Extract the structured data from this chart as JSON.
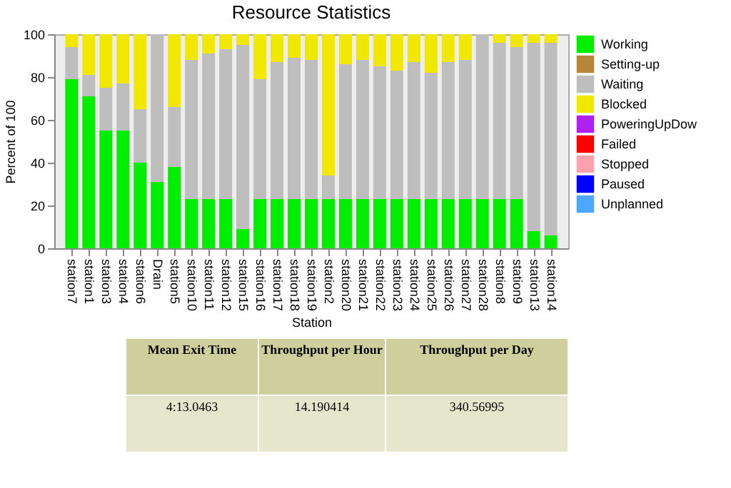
{
  "chart_data": {
    "type": "bar",
    "stacked": true,
    "title": "Resource Statistics",
    "xlabel": "Station",
    "ylabel": "Percent of 100",
    "categories": [
      "station7",
      "station1",
      "station3",
      "station4",
      "station6",
      "Drain",
      "station5",
      "station10",
      "station11",
      "station12",
      "station15",
      "station16",
      "station17",
      "station18",
      "station19",
      "station2",
      "station20",
      "station21",
      "station22",
      "station23",
      "station24",
      "station25",
      "station26",
      "station27",
      "station28",
      "station8",
      "station9",
      "station13",
      "station14"
    ],
    "series": [
      {
        "name": "Working",
        "color": "#00ee00",
        "values": [
          79,
          71,
          55,
          55,
          40,
          31,
          38,
          23,
          23,
          23,
          9,
          23,
          23,
          23,
          23,
          23,
          23,
          23,
          23,
          23,
          23,
          23,
          23,
          23,
          23,
          23,
          23,
          8,
          6
        ]
      },
      {
        "name": "Setting-up",
        "color": "#b8863b",
        "values": [
          0,
          0,
          0,
          0,
          0,
          0,
          0,
          0,
          0,
          0,
          0,
          0,
          0,
          0,
          0,
          0,
          0,
          0,
          0,
          0,
          0,
          0,
          0,
          0,
          0,
          0,
          0,
          0,
          0
        ]
      },
      {
        "name": "Waiting",
        "color": "#bebebe",
        "values": [
          15,
          10,
          20,
          22,
          25,
          69,
          28,
          65,
          68,
          70,
          86,
          56,
          64,
          66,
          65,
          11,
          63,
          65,
          62,
          60,
          64,
          59,
          64,
          65,
          77,
          73,
          71,
          88,
          90
        ]
      },
      {
        "name": "Blocked",
        "color": "#f0e800",
        "values": [
          6,
          19,
          25,
          23,
          35,
          0,
          34,
          12,
          9,
          7,
          5,
          21,
          13,
          11,
          12,
          66,
          14,
          12,
          15,
          17,
          13,
          18,
          13,
          12,
          0,
          4,
          6,
          4,
          4
        ]
      },
      {
        "name": "PoweringUpDow",
        "color": "#b020f0",
        "values": [
          0,
          0,
          0,
          0,
          0,
          0,
          0,
          0,
          0,
          0,
          0,
          0,
          0,
          0,
          0,
          0,
          0,
          0,
          0,
          0,
          0,
          0,
          0,
          0,
          0,
          0,
          0,
          0,
          0
        ]
      },
      {
        "name": "Failed",
        "color": "#ff0000",
        "values": [
          0,
          0,
          0,
          0,
          0,
          0,
          0,
          0,
          0,
          0,
          0,
          0,
          0,
          0,
          0,
          0,
          0,
          0,
          0,
          0,
          0,
          0,
          0,
          0,
          0,
          0,
          0,
          0,
          0
        ]
      },
      {
        "name": "Stopped",
        "color": "#ffa0b0",
        "values": [
          0,
          0,
          0,
          0,
          0,
          0,
          0,
          0,
          0,
          0,
          0,
          0,
          0,
          0,
          0,
          0,
          0,
          0,
          0,
          0,
          0,
          0,
          0,
          0,
          0,
          0,
          0,
          0,
          0
        ]
      },
      {
        "name": "Paused",
        "color": "#0000ff",
        "values": [
          0,
          0,
          0,
          0,
          0,
          0,
          0,
          0,
          0,
          0,
          0,
          0,
          0,
          0,
          0,
          0,
          0,
          0,
          0,
          0,
          0,
          0,
          0,
          0,
          0,
          0,
          0,
          0,
          0
        ]
      },
      {
        "name": "Unplanned",
        "color": "#4da6ff",
        "values": [
          0,
          0,
          0,
          0,
          0,
          0,
          0,
          0,
          0,
          0,
          0,
          0,
          0,
          0,
          0,
          0,
          0,
          0,
          0,
          0,
          0,
          0,
          0,
          0,
          0,
          0,
          0,
          0,
          0
        ]
      }
    ],
    "ylim": [
      0,
      100
    ],
    "yticks": [
      0,
      20,
      40,
      60,
      80,
      100
    ],
    "grid": false,
    "legend": "top right",
    "annotations": [
      "Mean Exit Time",
      "Throughput per Hour",
      "Throughput per Day",
      "4:13.0463",
      "14.190414",
      "340.56995"
    ]
  }
}
